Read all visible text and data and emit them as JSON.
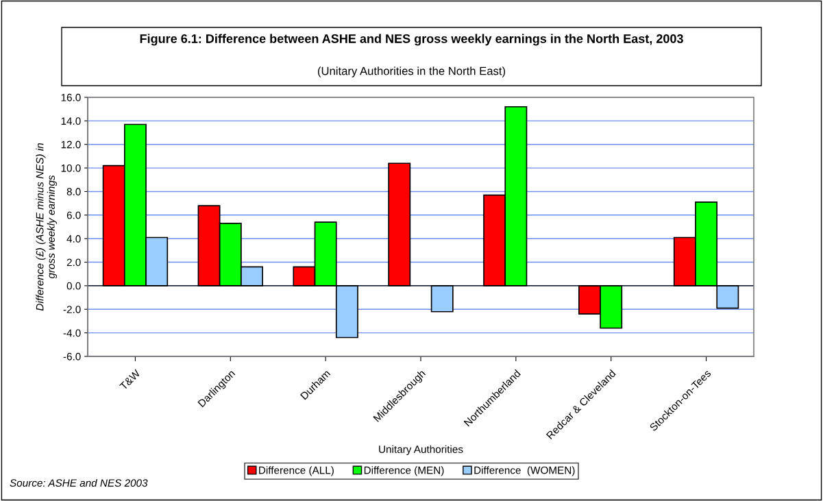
{
  "chart_data": {
    "type": "bar",
    "title": "Figure 6.1: Difference between ASHE and NES gross weekly earnings in the North East, 2003",
    "subtitle": "(Unitary Authorities in the North East)",
    "xlabel": "Unitary Authorities",
    "ylabel": "Difference (£) (ASHE minus NES) in\ngross weekly earnings",
    "categories": [
      "T&W",
      "Darlington",
      "Durham",
      "Middlesbrough",
      "Northumberland",
      "Redcar & Cleveland",
      "Stockton-on-Tees"
    ],
    "series": [
      {
        "name": "Difference (ALL)",
        "color": "#ff0000",
        "values": [
          10.2,
          6.8,
          1.6,
          10.4,
          7.7,
          -2.4,
          4.1
        ]
      },
      {
        "name": "Difference (MEN)",
        "color": "#00ff00",
        "values": [
          13.7,
          5.3,
          5.4,
          null,
          15.2,
          -3.6,
          7.1
        ]
      },
      {
        "name": "Difference  (WOMEN)",
        "color": "#99ccff",
        "values": [
          4.1,
          1.6,
          -4.4,
          -2.2,
          null,
          null,
          -1.9
        ]
      }
    ],
    "ylim": [
      -6,
      16
    ],
    "yticks": [
      {
        "value": -6,
        "label": "-6.0"
      },
      {
        "value": -4,
        "label": "-4.0"
      },
      {
        "value": -2,
        "label": "-2.0"
      },
      {
        "value": 0,
        "label": "0.0"
      },
      {
        "value": 2,
        "label": "2.0"
      },
      {
        "value": 4,
        "label": "4.0"
      },
      {
        "value": 6,
        "label": "6.0"
      },
      {
        "value": 8,
        "label": "8.0"
      },
      {
        "value": 10,
        "label": "10.0"
      },
      {
        "value": 12,
        "label": "12.0"
      },
      {
        "value": 14,
        "label": "14.0"
      },
      {
        "value": 16,
        "label": "16.0"
      }
    ],
    "grid": "y",
    "legend": "bottom",
    "annotations": [
      "Source: ASHE and NES 2003"
    ]
  }
}
